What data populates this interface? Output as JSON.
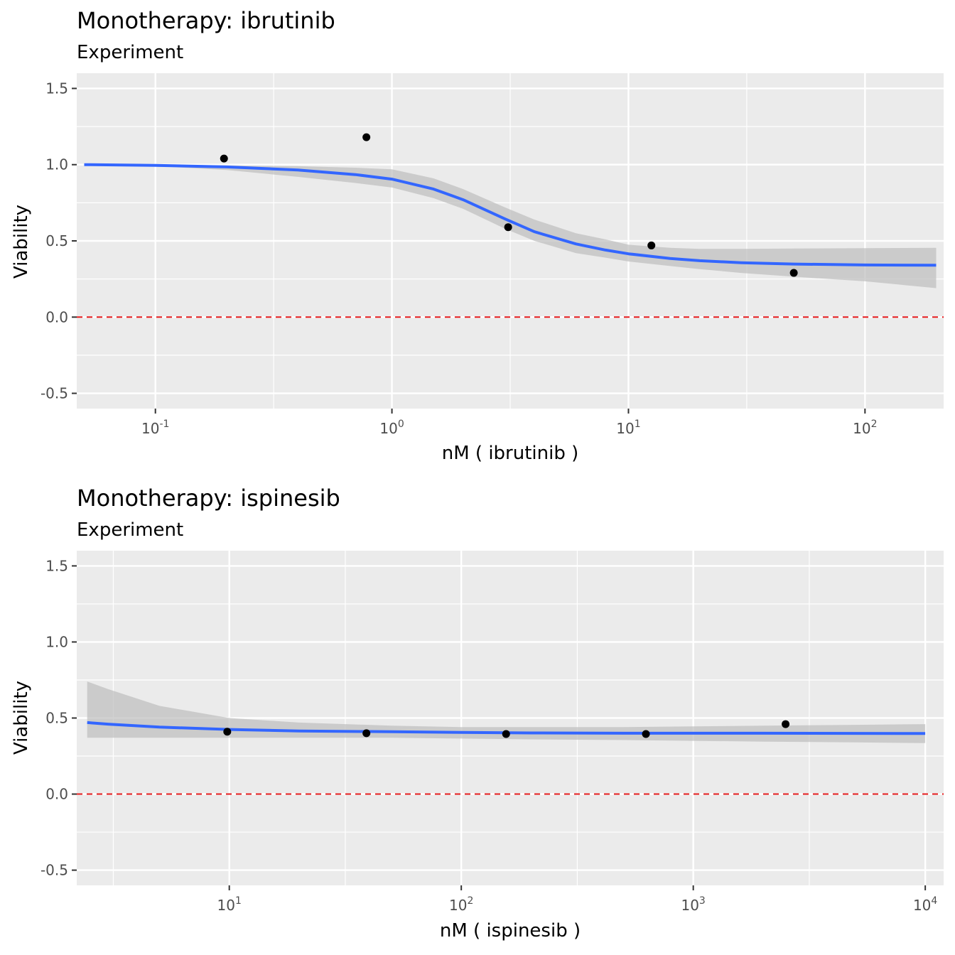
{
  "colors": {
    "panel_background": "#ebebeb",
    "grid_major": "#ffffff",
    "fit_line": "#3366ff",
    "ribbon": "#bdbdbd",
    "points": "#000000",
    "zero_line": "#e41a1c",
    "tick_text": "#4d4d4d"
  },
  "chart_data": [
    {
      "type": "scatter",
      "title": "Monotherapy: ibrutinib",
      "subtitle": "Experiment",
      "xlabel": "nM  ( ibrutinib )",
      "ylabel": "Viability",
      "x_scale": "log10",
      "xlim": [
        0.0465,
        215
      ],
      "ylim": [
        -0.6,
        1.6
      ],
      "y_ticks": [
        {
          "value": 1.5,
          "label": "1.5"
        },
        {
          "value": 1.0,
          "label": "1.0"
        },
        {
          "value": 0.5,
          "label": "0.5"
        },
        {
          "value": 0.0,
          "label": "0.0"
        },
        {
          "value": -0.5,
          "label": "-0.5"
        }
      ],
      "x_ticks": [
        {
          "value": 0.1,
          "base": "10",
          "exp": "-1"
        },
        {
          "value": 1,
          "base": "10",
          "exp": "0"
        },
        {
          "value": 10,
          "base": "10",
          "exp": "1"
        },
        {
          "value": 100,
          "base": "10",
          "exp": "2"
        }
      ],
      "grid": true,
      "reference_line": {
        "y": 0,
        "style": "dashed",
        "color": "#e41a1c"
      },
      "points": [
        {
          "x": 0.195,
          "y": 1.04
        },
        {
          "x": 0.78,
          "y": 1.18
        },
        {
          "x": 3.1,
          "y": 0.59
        },
        {
          "x": 12.5,
          "y": 0.47
        },
        {
          "x": 50,
          "y": 0.29
        }
      ],
      "fit": {
        "x": [
          0.05,
          0.1,
          0.2,
          0.4,
          0.7,
          1.0,
          1.5,
          2.0,
          3.0,
          4.0,
          6.0,
          8.0,
          10,
          15,
          20,
          30,
          50,
          100,
          200
        ],
        "y": [
          1.0,
          0.995,
          0.985,
          0.965,
          0.935,
          0.905,
          0.84,
          0.77,
          0.645,
          0.56,
          0.48,
          0.44,
          0.415,
          0.385,
          0.37,
          0.357,
          0.348,
          0.342,
          0.34
        ],
        "lower": [
          1.0,
          0.99,
          0.965,
          0.92,
          0.88,
          0.85,
          0.78,
          0.71,
          0.58,
          0.5,
          0.42,
          0.39,
          0.365,
          0.335,
          0.315,
          0.29,
          0.265,
          0.235,
          0.19
        ],
        "upper": [
          1.0,
          1.0,
          0.995,
          0.99,
          0.98,
          0.97,
          0.91,
          0.84,
          0.72,
          0.64,
          0.55,
          0.51,
          0.475,
          0.455,
          0.448,
          0.448,
          0.45,
          0.452,
          0.455
        ]
      }
    },
    {
      "type": "scatter",
      "title": "Monotherapy: ispinesib",
      "subtitle": "Experiment",
      "xlabel": "nM  ( ispinesib )",
      "ylabel": "Viability",
      "x_scale": "log10",
      "xlim": [
        2.2,
        12000
      ],
      "ylim": [
        -0.6,
        1.6
      ],
      "y_ticks": [
        {
          "value": 1.5,
          "label": "1.5"
        },
        {
          "value": 1.0,
          "label": "1.0"
        },
        {
          "value": 0.5,
          "label": "0.5"
        },
        {
          "value": 0.0,
          "label": "0.0"
        },
        {
          "value": -0.5,
          "label": "-0.5"
        }
      ],
      "x_ticks": [
        {
          "value": 10,
          "base": "10",
          "exp": "1"
        },
        {
          "value": 100,
          "base": "10",
          "exp": "2"
        },
        {
          "value": 1000,
          "base": "10",
          "exp": "3"
        },
        {
          "value": 10000,
          "base": "10",
          "exp": "4"
        }
      ],
      "grid": true,
      "reference_line": {
        "y": 0,
        "style": "dashed",
        "color": "#e41a1c"
      },
      "points": [
        {
          "x": 9.8,
          "y": 0.41
        },
        {
          "x": 39,
          "y": 0.4
        },
        {
          "x": 156,
          "y": 0.395
        },
        {
          "x": 625,
          "y": 0.395
        },
        {
          "x": 2500,
          "y": 0.46
        }
      ],
      "fit": {
        "x": [
          2.44,
          3,
          5,
          10,
          20,
          50,
          100,
          200,
          500,
          1000,
          2000,
          5000,
          10000
        ],
        "y": [
          0.47,
          0.46,
          0.44,
          0.425,
          0.415,
          0.41,
          0.405,
          0.402,
          0.4,
          0.4,
          0.4,
          0.399,
          0.398
        ],
        "lower": [
          0.37,
          0.37,
          0.37,
          0.37,
          0.37,
          0.37,
          0.365,
          0.36,
          0.355,
          0.35,
          0.345,
          0.34,
          0.335
        ],
        "upper": [
          0.74,
          0.69,
          0.58,
          0.5,
          0.47,
          0.45,
          0.44,
          0.44,
          0.44,
          0.445,
          0.45,
          0.455,
          0.46
        ]
      }
    }
  ]
}
